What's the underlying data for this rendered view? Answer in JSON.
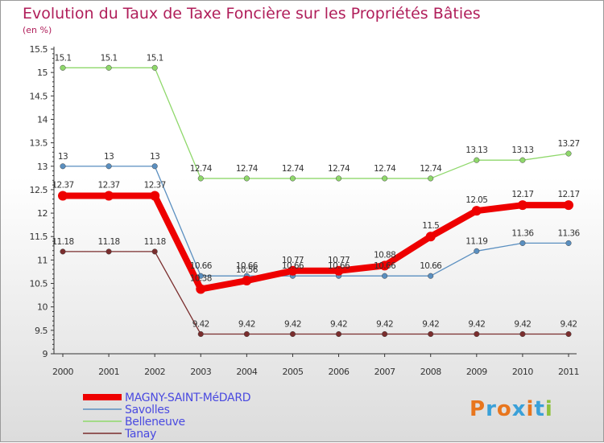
{
  "chart_data": {
    "type": "line",
    "title": "Evolution du Taux de Taxe Foncière sur les Propriétés Bâties",
    "subtitle": "(en %)",
    "xlabel": "",
    "ylabel": "",
    "ylim": [
      9,
      15.5
    ],
    "yticks": [
      "9",
      "9.5",
      "10",
      "10.5",
      "11",
      "11.5",
      "12",
      "12.5",
      "13",
      "13.5",
      "14",
      "14.5",
      "15",
      "15.5"
    ],
    "categories": [
      "2000",
      "2001",
      "2002",
      "2003",
      "2004",
      "2005",
      "2006",
      "2007",
      "2008",
      "2009",
      "2010",
      "2011"
    ],
    "series": [
      {
        "name": "Tanay",
        "color": "#7a2d2d",
        "values": [
          11.18,
          11.18,
          11.18,
          9.42,
          9.42,
          9.42,
          9.42,
          9.42,
          9.42,
          9.42,
          9.42,
          9.42
        ],
        "labels": [
          "11.18",
          "11.18",
          "11.18",
          "9.42",
          "9.42",
          "9.42",
          "9.42",
          "9.42",
          "9.42",
          "9.42",
          "9.42",
          "9.42"
        ]
      },
      {
        "name": "Belleneuve",
        "color": "#8fd86b",
        "values": [
          15.1,
          15.1,
          15.1,
          12.74,
          12.74,
          12.74,
          12.74,
          12.74,
          12.74,
          13.13,
          13.13,
          13.27
        ],
        "labels": [
          "15.1",
          "15.1",
          "15.1",
          "12.74",
          "12.74",
          "12.74",
          "12.74",
          "12.74",
          "12.74",
          "13.13",
          "13.13",
          "13.27"
        ]
      },
      {
        "name": "Savolles",
        "color": "#5a8fc0",
        "values": [
          13,
          13,
          13,
          10.66,
          10.66,
          10.66,
          10.66,
          10.66,
          10.66,
          11.19,
          11.36,
          11.36
        ],
        "labels": [
          "13",
          "13",
          "13",
          "10.66",
          "10.66",
          "10.66",
          "10.66",
          "10.66",
          "10.66",
          "11.19",
          "11.36",
          "11.36"
        ]
      },
      {
        "name": "MAGNY-SAINT-MéDARD",
        "color": "#ee0000",
        "values": [
          12.37,
          12.37,
          12.37,
          10.38,
          10.56,
          10.77,
          10.77,
          10.88,
          11.5,
          12.05,
          12.17,
          12.17
        ],
        "labels": [
          "12.37",
          "12.37",
          "12.37",
          "10.38",
          "10.56",
          "10.77",
          "10.77",
          "10.88",
          "11.5",
          "12.05",
          "12.17",
          "12.17"
        ]
      }
    ],
    "legend": {
      "placement": "bottom-left",
      "order": [
        "MAGNY-SAINT-MéDARD",
        "Savolles",
        "Belleneuve",
        "Tanay"
      ]
    }
  },
  "logo": {
    "text": "Proxiti",
    "colors": [
      "#e8761e",
      "#3aa0d8",
      "#e8761e",
      "#3aa0d8",
      "#e8761e",
      "#3aa0d8",
      "#8fc13c"
    ]
  }
}
